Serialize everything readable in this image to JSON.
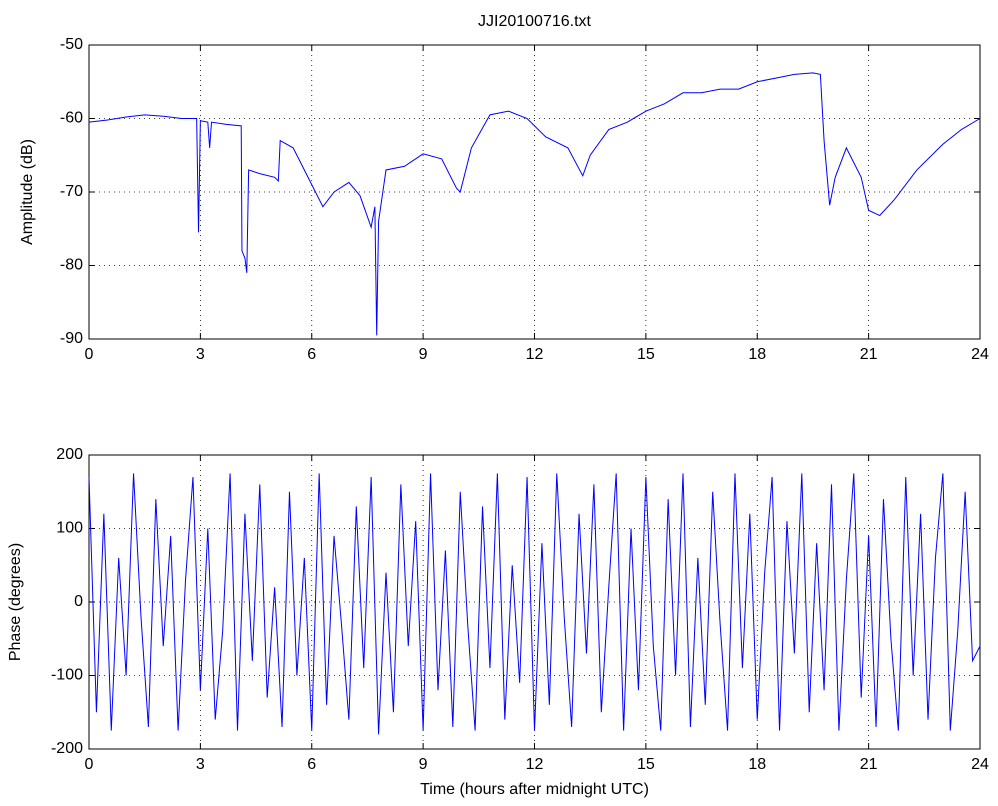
{
  "chart_data": [
    {
      "type": "line",
      "title": "JJI20100716.txt",
      "ylabel": "Amplitude (dB)",
      "color": "#0000ff",
      "grid": true,
      "xlim": [
        0,
        24
      ],
      "xticks": [
        0,
        3,
        6,
        9,
        12,
        15,
        18,
        21,
        24
      ],
      "ylim": [
        -90,
        -50
      ],
      "yticks": [
        -90,
        -80,
        -70,
        -60,
        -50
      ],
      "x": [
        0,
        0.5,
        1,
        1.5,
        2,
        2.5,
        2.9,
        2.95,
        3.0,
        3.2,
        3.25,
        3.3,
        3.7,
        4.1,
        4.12,
        4.2,
        4.25,
        4.3,
        4.6,
        5.0,
        5.1,
        5.15,
        5.5,
        6.0,
        6.3,
        6.6,
        7.0,
        7.3,
        7.6,
        7.7,
        7.75,
        7.8,
        8.0,
        8.5,
        9.0,
        9.5,
        9.9,
        10.0,
        10.3,
        10.8,
        11.3,
        11.8,
        12.3,
        12.9,
        13.3,
        13.5,
        14.0,
        14.5,
        15.0,
        15.5,
        16.0,
        16.5,
        17.0,
        17.5,
        18.0,
        18.5,
        19.0,
        19.5,
        19.7,
        19.8,
        19.95,
        20.1,
        20.4,
        20.8,
        21.0,
        21.3,
        21.7,
        22.3,
        23.0,
        23.5,
        24
      ],
      "values": [
        -60.5,
        -60.2,
        -59.8,
        -59.5,
        -59.7,
        -60,
        -60,
        -75.5,
        -60.3,
        -60.5,
        -64,
        -60.5,
        -60.8,
        -61,
        -78,
        -79,
        -81,
        -67,
        -67.5,
        -68,
        -68.5,
        -63,
        -64,
        -69,
        -72,
        -70,
        -68.7,
        -70.5,
        -74.8,
        -72,
        -89.5,
        -74,
        -67,
        -66.5,
        -64.8,
        -65.5,
        -69.5,
        -70,
        -64,
        -59.5,
        -59,
        -60,
        -62.5,
        -64,
        -67.8,
        -65,
        -61.5,
        -60.5,
        -59,
        -58,
        -56.5,
        -56.5,
        -56,
        -56,
        -55,
        -54.5,
        -54,
        -53.8,
        -54,
        -63,
        -71.8,
        -68,
        -64,
        -68,
        -72.5,
        -73.2,
        -71,
        -67,
        -63.5,
        -61.5,
        -60
      ]
    },
    {
      "type": "line",
      "xlabel": "Time (hours after midnight UTC)",
      "ylabel": "Phase (degrees)",
      "color": "#0000ff",
      "grid": true,
      "xlim": [
        0,
        24
      ],
      "xticks": [
        0,
        3,
        6,
        9,
        12,
        15,
        18,
        21,
        24
      ],
      "ylim": [
        -200,
        200
      ],
      "yticks": [
        -200,
        -100,
        0,
        100,
        200
      ],
      "x": [
        0,
        0.2,
        0.4,
        0.6,
        0.8,
        1,
        1.2,
        1.4,
        1.6,
        1.8,
        2,
        2.2,
        2.4,
        2.6,
        2.8,
        3,
        3.2,
        3.4,
        3.6,
        3.8,
        4,
        4.2,
        4.4,
        4.6,
        4.8,
        5,
        5.2,
        5.4,
        5.6,
        5.8,
        6,
        6.2,
        6.4,
        6.6,
        6.8,
        7,
        7.2,
        7.4,
        7.6,
        7.8,
        8,
        8.2,
        8.4,
        8.6,
        8.8,
        9,
        9.2,
        9.4,
        9.6,
        9.8,
        10,
        10.2,
        10.4,
        10.6,
        10.8,
        11,
        11.2,
        11.4,
        11.6,
        11.8,
        12,
        12.2,
        12.4,
        12.6,
        12.8,
        13,
        13.2,
        13.4,
        13.6,
        13.8,
        14,
        14.2,
        14.4,
        14.6,
        14.8,
        15,
        15.2,
        15.4,
        15.6,
        15.8,
        16,
        16.2,
        16.4,
        16.6,
        16.8,
        17,
        17.2,
        17.4,
        17.6,
        17.8,
        18,
        18.2,
        18.4,
        18.6,
        18.8,
        19,
        19.2,
        19.4,
        19.6,
        19.8,
        20,
        20.2,
        20.4,
        20.6,
        20.8,
        21,
        21.2,
        21.4,
        21.6,
        21.8,
        22,
        22.2,
        22.4,
        22.6,
        22.8,
        23,
        23.2,
        23.4,
        23.6,
        23.8,
        24
      ],
      "values": [
        170,
        -150,
        120,
        -175,
        60,
        -100,
        175,
        -20,
        -170,
        140,
        -60,
        90,
        -175,
        30,
        170,
        -120,
        100,
        -160,
        -40,
        175,
        -175,
        120,
        -80,
        160,
        -130,
        20,
        -170,
        150,
        -100,
        60,
        -175,
        175,
        -140,
        90,
        -30,
        -160,
        130,
        -90,
        170,
        -180,
        40,
        -150,
        160,
        -60,
        110,
        -175,
        175,
        -120,
        70,
        -170,
        150,
        -30,
        -175,
        130,
        -90,
        175,
        -160,
        50,
        -110,
        170,
        -175,
        80,
        -140,
        175,
        -20,
        -170,
        120,
        -70,
        160,
        -150,
        20,
        175,
        -175,
        100,
        -120,
        170,
        -60,
        -175,
        140,
        -100,
        175,
        -170,
        60,
        -140,
        150,
        -30,
        -175,
        175,
        -90,
        120,
        -160,
        40,
        170,
        -175,
        110,
        -70,
        175,
        -150,
        80,
        -120,
        160,
        -175,
        30,
        175,
        -130,
        90,
        -170,
        140,
        -50,
        -175,
        170,
        -100,
        120,
        -160,
        60,
        175,
        -175,
        -40,
        150,
        -80,
        -60
      ]
    }
  ]
}
